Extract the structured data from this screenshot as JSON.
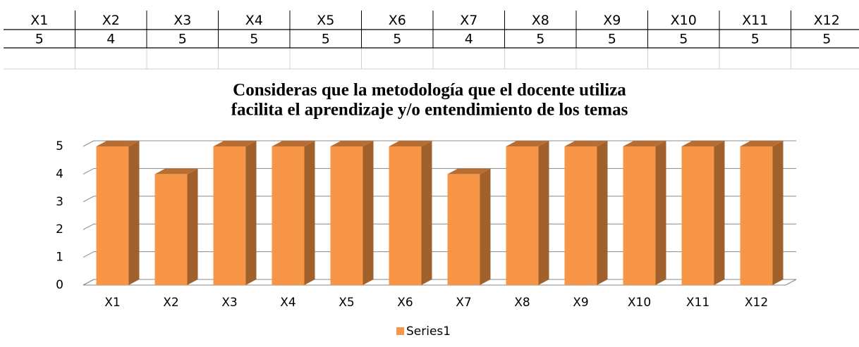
{
  "table": {
    "rows": [
      [
        "X1",
        "X2",
        "X3",
        "X4",
        "X5",
        "X6",
        "X7",
        "X8",
        "X9",
        "X10",
        "X11",
        "X12"
      ],
      [
        "5",
        "4",
        "5",
        "5",
        "5",
        "5",
        "4",
        "5",
        "5",
        "5",
        "5",
        "5"
      ]
    ]
  },
  "chart_data": {
    "type": "bar3d",
    "title": [
      "Consideras que la metodología que el docente utiliza",
      "facilita el aprendizaje y/o entendimiento de los temas"
    ],
    "categories": [
      "X1",
      "X2",
      "X3",
      "X4",
      "X5",
      "X6",
      "X7",
      "X8",
      "X9",
      "X10",
      "X11",
      "X12"
    ],
    "series": [
      {
        "name": "Series1",
        "color": "#f79646",
        "values": [
          5,
          4,
          5,
          5,
          5,
          5,
          4,
          5,
          5,
          5,
          5,
          5
        ]
      }
    ],
    "ylim": [
      0,
      5
    ],
    "yticks": [
      0,
      1,
      2,
      3,
      4,
      5
    ],
    "grid": true,
    "legend": "bottom"
  }
}
